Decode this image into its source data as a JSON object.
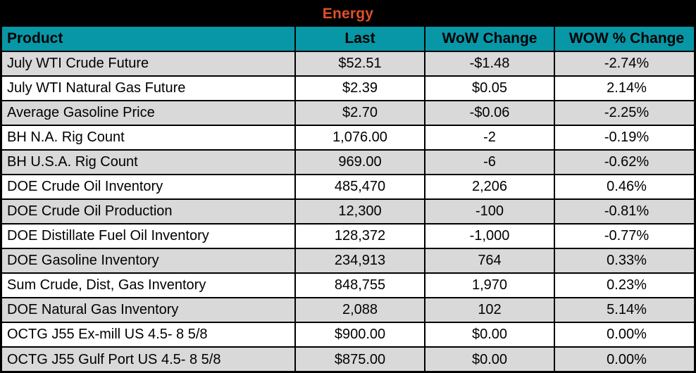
{
  "colors": {
    "title_bg": "#000000",
    "title_text": "#E0502B",
    "header_bg": "#0897A7",
    "row_alt": "#D9D9D9",
    "row_base": "#FFFFFF",
    "grid": "#000000"
  },
  "chart_data": {
    "type": "table",
    "title": "Energy",
    "columns": [
      "Product",
      "Last",
      "WoW Change",
      "WOW % Change"
    ],
    "rows": [
      [
        "July WTI Crude Future",
        "$52.51",
        "-$1.48",
        "-2.74%"
      ],
      [
        "July WTI Natural Gas Future",
        "$2.39",
        "$0.05",
        "2.14%"
      ],
      [
        "Average Gasoline Price",
        "$2.70",
        "-$0.06",
        "-2.25%"
      ],
      [
        "BH N.A. Rig Count",
        "1,076.00",
        "-2",
        "-0.19%"
      ],
      [
        "BH U.S.A. Rig Count",
        "969.00",
        "-6",
        "-0.62%"
      ],
      [
        "DOE Crude Oil Inventory",
        "485,470",
        "2,206",
        "0.46%"
      ],
      [
        "DOE Crude Oil Production",
        "12,300",
        "-100",
        "-0.81%"
      ],
      [
        "DOE Distillate Fuel Oil Inventory",
        "128,372",
        "-1,000",
        "-0.77%"
      ],
      [
        "DOE Gasoline Inventory",
        "234,913",
        "764",
        "0.33%"
      ],
      [
        "Sum Crude, Dist, Gas Inventory",
        "848,755",
        "1,970",
        "0.23%"
      ],
      [
        "DOE Natural Gas Inventory",
        "2,088",
        "102",
        "5.14%"
      ],
      [
        "OCTG J55 Ex-mill US 4.5- 8 5/8",
        "$900.00",
        "$0.00",
        "0.00%"
      ],
      [
        "OCTG J55 Gulf Port US 4.5- 8 5/8",
        "$875.00",
        "$0.00",
        "0.00%"
      ]
    ],
    "layout_hints": {
      "alternating_row_shading": "first data row shaded gray, then alternating",
      "alignment": {
        "Product": "left",
        "Last": "center",
        "WoW Change": "center",
        "WOW % Change": "center"
      }
    }
  }
}
